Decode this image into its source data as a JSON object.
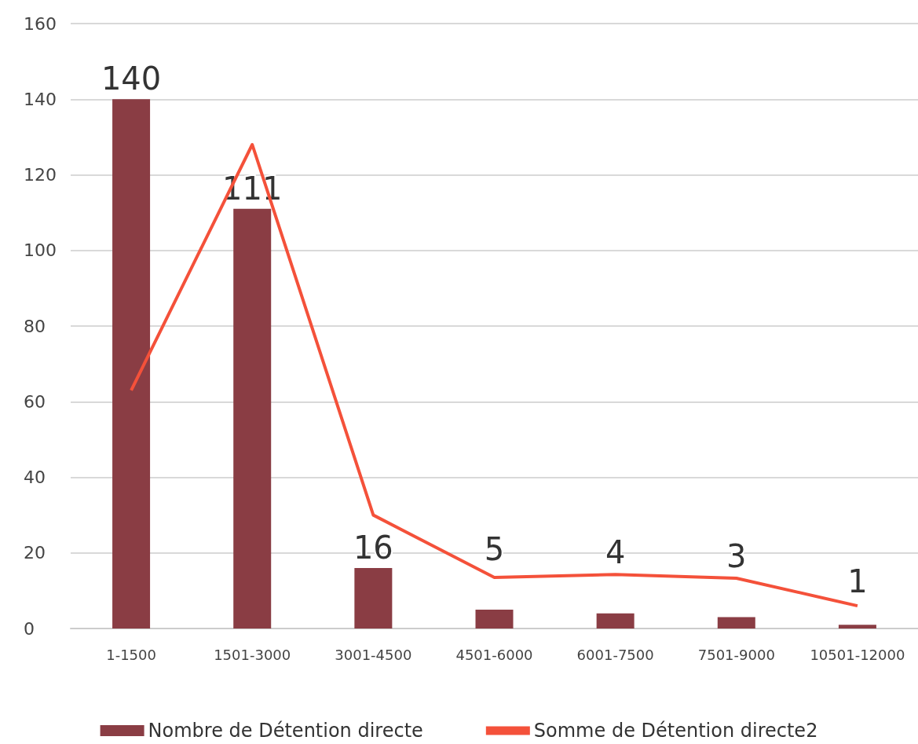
{
  "chart_data": {
    "type": "bar",
    "categories": [
      "1-1500",
      "1501-3000",
      "3001-4500",
      "4501-6000",
      "6001-7500",
      "7501-9000",
      "10501-12000"
    ],
    "series": [
      {
        "name": "Nombre de Détention directe",
        "color": "#8a3d44",
        "values": [
          140,
          111,
          16,
          5,
          4,
          3,
          1
        ],
        "data_labels": true
      },
      {
        "name": "Somme de Détention directe2",
        "type": "line",
        "color": "#f4513a",
        "values": [
          63,
          128,
          30,
          13.5,
          14.3,
          13.3,
          6
        ],
        "marker": "none"
      }
    ],
    "ylim": [
      0,
      160
    ],
    "yticks": [
      0,
      20,
      40,
      60,
      80,
      100,
      120,
      140,
      160
    ],
    "grid": "y",
    "legend": "bottom"
  }
}
